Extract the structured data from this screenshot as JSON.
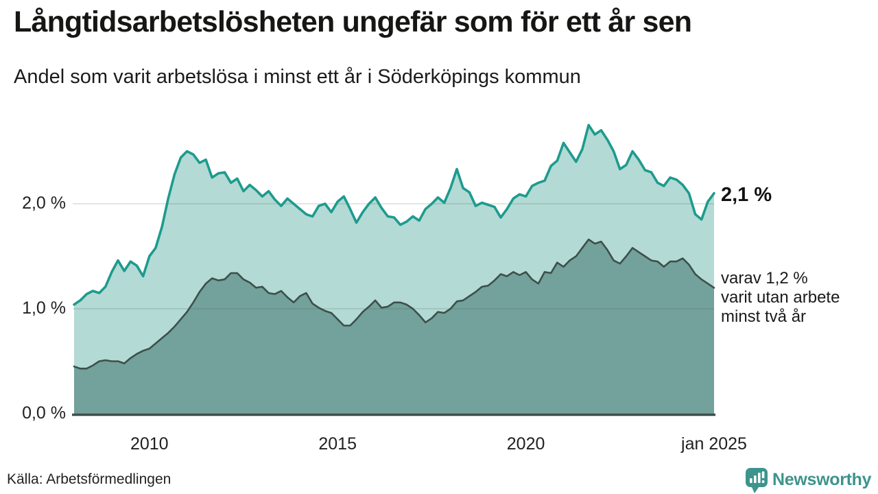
{
  "header": {
    "title": "Långtidsarbetslösheten ungefär som för ett år sen",
    "subtitle": "Andel som varit arbetslösa i minst ett år i Söderköpings kommun"
  },
  "annotations": {
    "latest_total": "2,1 %",
    "secondary_line1": "varav 1,2 %",
    "secondary_line2": "varit utan arbete",
    "secondary_line3": "minst två år"
  },
  "source": {
    "label": "Källa: Arbetsförmedlingen"
  },
  "logo": {
    "text": "Newsworthy",
    "icon": "bar-chart-speech-bubble-icon"
  },
  "colors": {
    "accent_teal": "#1d9b8e",
    "light_fill": "#b3dad4",
    "dark_fill": "#73a19b",
    "dark_line": "#3d4f4a",
    "baseline": "#3f4f4b",
    "gridline": "#3e5553",
    "logo_teal": "#3d948c",
    "text_dark": "#161614"
  },
  "chart_data": {
    "type": "area",
    "title": "Långtidsarbetslösheten ungefär som för ett år sen",
    "subtitle": "Andel som varit arbetslösa i minst ett år i Söderköpings kommun",
    "unit": "%",
    "x_start": "2008-01",
    "x_end": "2025-01",
    "step_months": 2,
    "ylim": [
      0,
      2.95
    ],
    "grid": "horizontal",
    "legend_position": "right-annotations",
    "gridlines": [
      1,
      2
    ],
    "y_axis": {
      "ticks": [
        {
          "value": 0,
          "label": "0,0 %"
        },
        {
          "value": 1,
          "label": "1,0 %"
        },
        {
          "value": 2,
          "label": "2,0 %"
        }
      ]
    },
    "x_axis": {
      "ticks": [
        {
          "month": 24,
          "label": "2010"
        },
        {
          "month": 84,
          "label": "2015"
        },
        {
          "month": 144,
          "label": "2020"
        },
        {
          "month": 204,
          "label": "jan 2025"
        }
      ]
    },
    "series": [
      {
        "name": "Andel arbetslösa minst ett år",
        "latest_value": 2.1,
        "latest_label": "2,1 %",
        "line_color": "#1d9b8e",
        "fill_color": "#b3dad4",
        "values": [
          1.04,
          1.08,
          1.14,
          1.17,
          1.15,
          1.21,
          1.35,
          1.46,
          1.36,
          1.45,
          1.41,
          1.31,
          1.5,
          1.58,
          1.78,
          2.05,
          2.28,
          2.44,
          2.5,
          2.47,
          2.39,
          2.42,
          2.25,
          2.29,
          2.3,
          2.2,
          2.24,
          2.12,
          2.18,
          2.13,
          2.07,
          2.12,
          2.04,
          1.98,
          2.05,
          2.0,
          1.95,
          1.9,
          1.88,
          1.98,
          2.0,
          1.92,
          2.02,
          2.07,
          1.95,
          1.82,
          1.92,
          2.0,
          2.06,
          1.96,
          1.88,
          1.87,
          1.8,
          1.83,
          1.88,
          1.84,
          1.95,
          2.0,
          2.06,
          2.01,
          2.15,
          2.33,
          2.15,
          2.11,
          1.98,
          2.01,
          1.99,
          1.97,
          1.87,
          1.95,
          2.05,
          2.09,
          2.07,
          2.17,
          2.2,
          2.22,
          2.36,
          2.41,
          2.58,
          2.49,
          2.4,
          2.52,
          2.75,
          2.66,
          2.7,
          2.61,
          2.5,
          2.33,
          2.37,
          2.5,
          2.42,
          2.32,
          2.3,
          2.2,
          2.17,
          2.25,
          2.23,
          2.18,
          2.1,
          1.9,
          1.85,
          2.02,
          2.1
        ]
      },
      {
        "name": "varav utan arbete minst två år",
        "latest_value": 1.2,
        "latest_label": "varav 1,2 % varit utan arbete minst två år",
        "line_color": "#3d4f4a",
        "fill_color": "#73a19b",
        "values": [
          0.45,
          0.43,
          0.43,
          0.46,
          0.5,
          0.51,
          0.5,
          0.5,
          0.48,
          0.53,
          0.57,
          0.6,
          0.62,
          0.67,
          0.72,
          0.77,
          0.83,
          0.9,
          0.97,
          1.06,
          1.16,
          1.24,
          1.29,
          1.27,
          1.28,
          1.34,
          1.34,
          1.28,
          1.25,
          1.2,
          1.21,
          1.15,
          1.14,
          1.17,
          1.11,
          1.06,
          1.12,
          1.15,
          1.05,
          1.01,
          0.98,
          0.96,
          0.9,
          0.84,
          0.84,
          0.9,
          0.97,
          1.02,
          1.08,
          1.01,
          1.02,
          1.06,
          1.06,
          1.04,
          1.0,
          0.94,
          0.87,
          0.91,
          0.97,
          0.96,
          1.0,
          1.07,
          1.08,
          1.12,
          1.16,
          1.21,
          1.22,
          1.27,
          1.33,
          1.31,
          1.35,
          1.32,
          1.35,
          1.28,
          1.24,
          1.35,
          1.34,
          1.44,
          1.4,
          1.46,
          1.5,
          1.58,
          1.66,
          1.62,
          1.64,
          1.56,
          1.46,
          1.43,
          1.5,
          1.58,
          1.54,
          1.5,
          1.46,
          1.45,
          1.4,
          1.45,
          1.45,
          1.48,
          1.42,
          1.33,
          1.28,
          1.24,
          1.2
        ]
      }
    ]
  }
}
